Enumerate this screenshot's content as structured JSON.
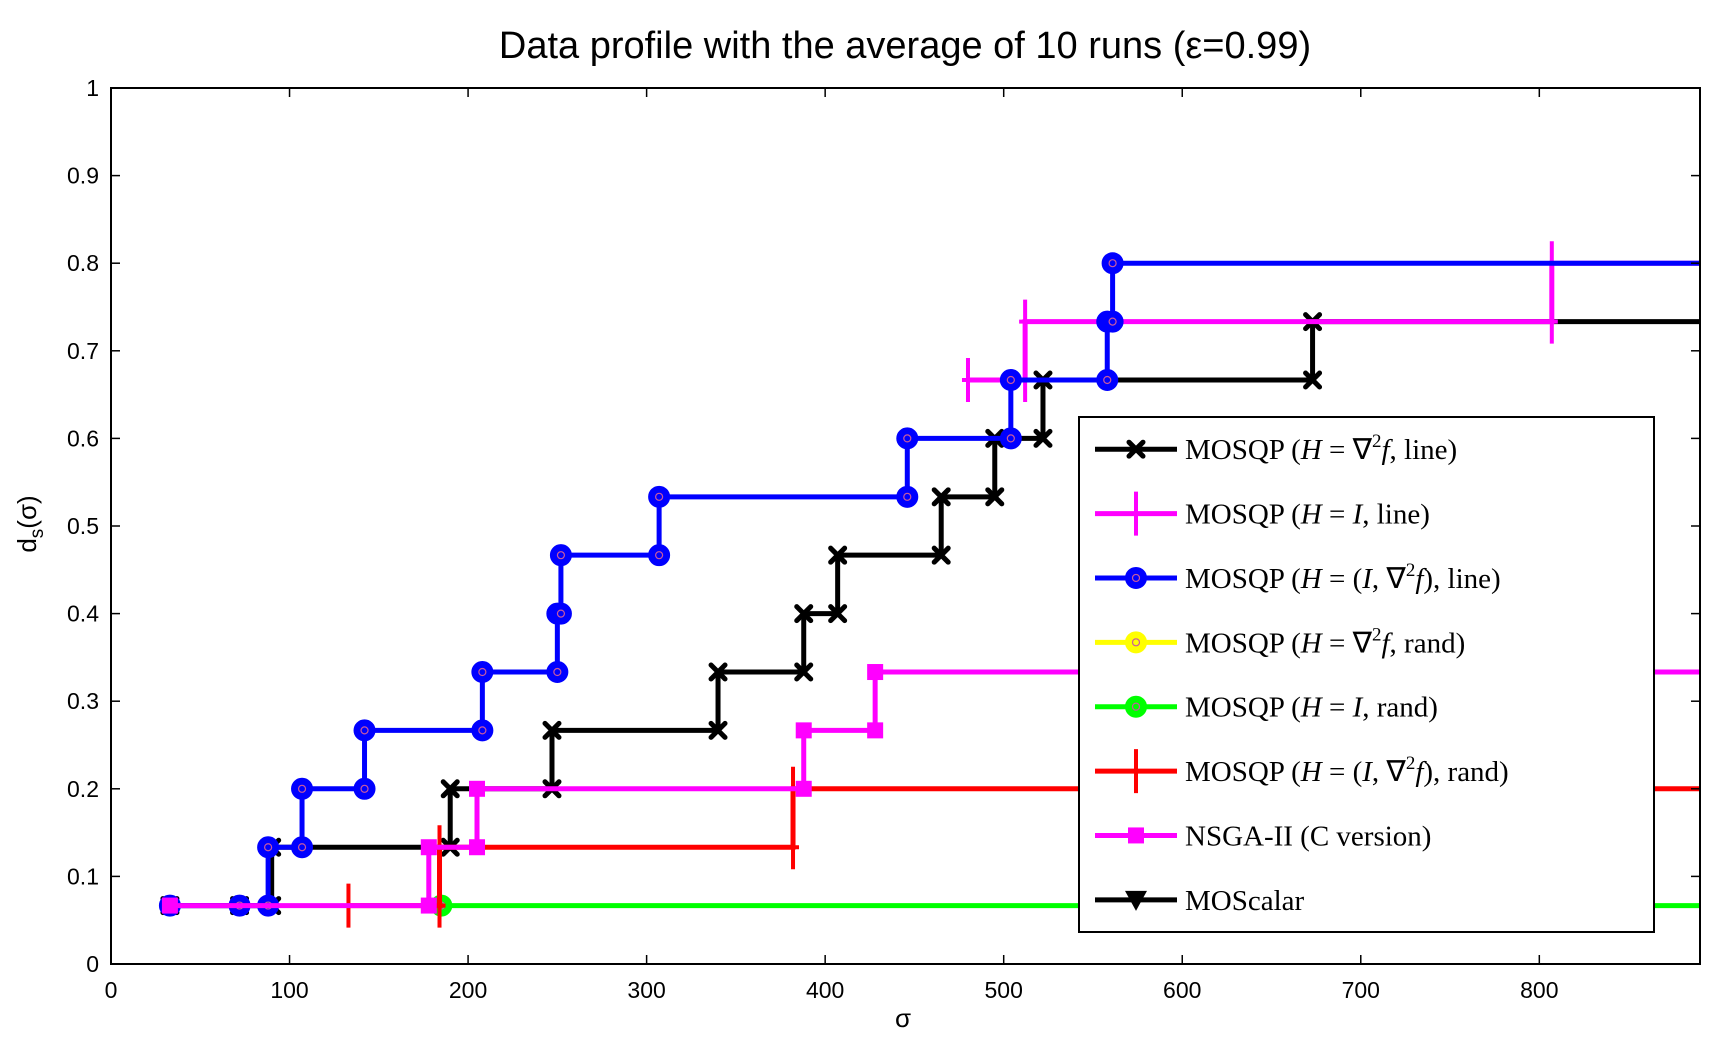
{
  "chart_data": {
    "type": "line",
    "step": true,
    "title": "Data profile with the average of 10 runs (ε=0.99)",
    "xlabel": "σ",
    "ylabel": "d_s(σ)",
    "xlim": [
      0,
      890
    ],
    "ylim": [
      0,
      1
    ],
    "xticks": [
      0,
      100,
      200,
      300,
      400,
      500,
      600,
      700,
      800
    ],
    "yticks": [
      0,
      0.1,
      0.2,
      0.3,
      0.4,
      0.5,
      0.6,
      0.7,
      0.8,
      0.9,
      1
    ],
    "grid": false,
    "legend_position": "lower-right",
    "series": [
      {
        "name": "MOSQP (H = ∇²f, line)",
        "legend_parts": [
          [
            "MOSQP (",
            "r"
          ],
          [
            "H",
            "i"
          ],
          [
            " = ∇",
            "r"
          ],
          [
            "2",
            "sup"
          ],
          [
            "f",
            "i"
          ],
          [
            ", line)",
            "r"
          ]
        ],
        "color": "#000000",
        "marker": "x",
        "x": [
          33,
          72,
          90,
          190,
          247,
          340,
          388,
          407,
          465,
          495,
          522,
          673,
          890
        ],
        "y": [
          0.0667,
          0.0667,
          0.1333,
          0.2,
          0.2667,
          0.3333,
          0.4,
          0.4667,
          0.5333,
          0.6,
          0.6667,
          0.7333,
          0.7333
        ]
      },
      {
        "name": "MOSQP (H = I, line)",
        "legend_parts": [
          [
            "MOSQP (",
            "r"
          ],
          [
            "H",
            "i"
          ],
          [
            " = ",
            "r"
          ],
          [
            "I",
            "i"
          ],
          [
            ", line)",
            "r"
          ]
        ],
        "color": "#ff00ff",
        "marker": "plus",
        "x": [
          480,
          512,
          807,
          890
        ],
        "y": [
          0.6667,
          0.7333,
          0.8,
          0.8
        ]
      },
      {
        "name": "MOSQP (H = (I, ∇²f), line)",
        "legend_parts": [
          [
            "MOSQP (",
            "r"
          ],
          [
            "H",
            "i"
          ],
          [
            " = (",
            "r"
          ],
          [
            "I",
            "i"
          ],
          [
            ", ∇",
            "r"
          ],
          [
            "2",
            "sup"
          ],
          [
            "f",
            "i"
          ],
          [
            "), line)",
            "r"
          ]
        ],
        "color": "#0000ff",
        "marker": "circle",
        "x": [
          33,
          72,
          88,
          107,
          142,
          208,
          250,
          252,
          307,
          446,
          504,
          558,
          561,
          890
        ],
        "y": [
          0.0667,
          0.0667,
          0.1333,
          0.2,
          0.2667,
          0.3333,
          0.4,
          0.4667,
          0.5333,
          0.6,
          0.6667,
          0.7333,
          0.8,
          0.8
        ]
      },
      {
        "name": "MOSQP (H = ∇²f, rand)",
        "legend_parts": [
          [
            "MOSQP (",
            "r"
          ],
          [
            "H",
            "i"
          ],
          [
            " = ∇",
            "r"
          ],
          [
            "2",
            "sup"
          ],
          [
            "f",
            "i"
          ],
          [
            ", rand)",
            "r"
          ]
        ],
        "color": "#ffff00",
        "marker": "circle",
        "x": [],
        "y": []
      },
      {
        "name": "MOSQP (H = I, rand)",
        "legend_parts": [
          [
            "MOSQP (",
            "r"
          ],
          [
            "H",
            "i"
          ],
          [
            " = ",
            "r"
          ],
          [
            "I",
            "i"
          ],
          [
            ", rand)",
            "r"
          ]
        ],
        "color": "#00ff00",
        "marker": "circle",
        "x": [
          185,
          890
        ],
        "y": [
          0.0667,
          0.0667
        ]
      },
      {
        "name": "MOSQP (H = (I, ∇²f), rand)",
        "legend_parts": [
          [
            "MOSQP (",
            "r"
          ],
          [
            "H",
            "i"
          ],
          [
            " = (",
            "r"
          ],
          [
            "I",
            "i"
          ],
          [
            ", ∇",
            "r"
          ],
          [
            "2",
            "sup"
          ],
          [
            "f",
            "i"
          ],
          [
            "), rand)",
            "r"
          ]
        ],
        "color": "#ff0000",
        "marker": "plus",
        "x": [
          133,
          184,
          382,
          890
        ],
        "y": [
          0.0667,
          0.1333,
          0.2,
          0.2
        ]
      },
      {
        "name": "NSGA-II (C version)",
        "legend_parts": [
          [
            "NSGA-II (C version)",
            "r"
          ]
        ],
        "color": "#ff00ff",
        "marker": "square",
        "x": [
          33,
          178,
          205,
          388,
          428,
          890
        ],
        "y": [
          0.0667,
          0.1333,
          0.2,
          0.2667,
          0.3333,
          0.3333
        ]
      },
      {
        "name": "MOScalar",
        "legend_parts": [
          [
            "MOScalar",
            "r"
          ]
        ],
        "color": "#000000",
        "marker": "triangle-down",
        "x": [],
        "y": []
      }
    ]
  }
}
